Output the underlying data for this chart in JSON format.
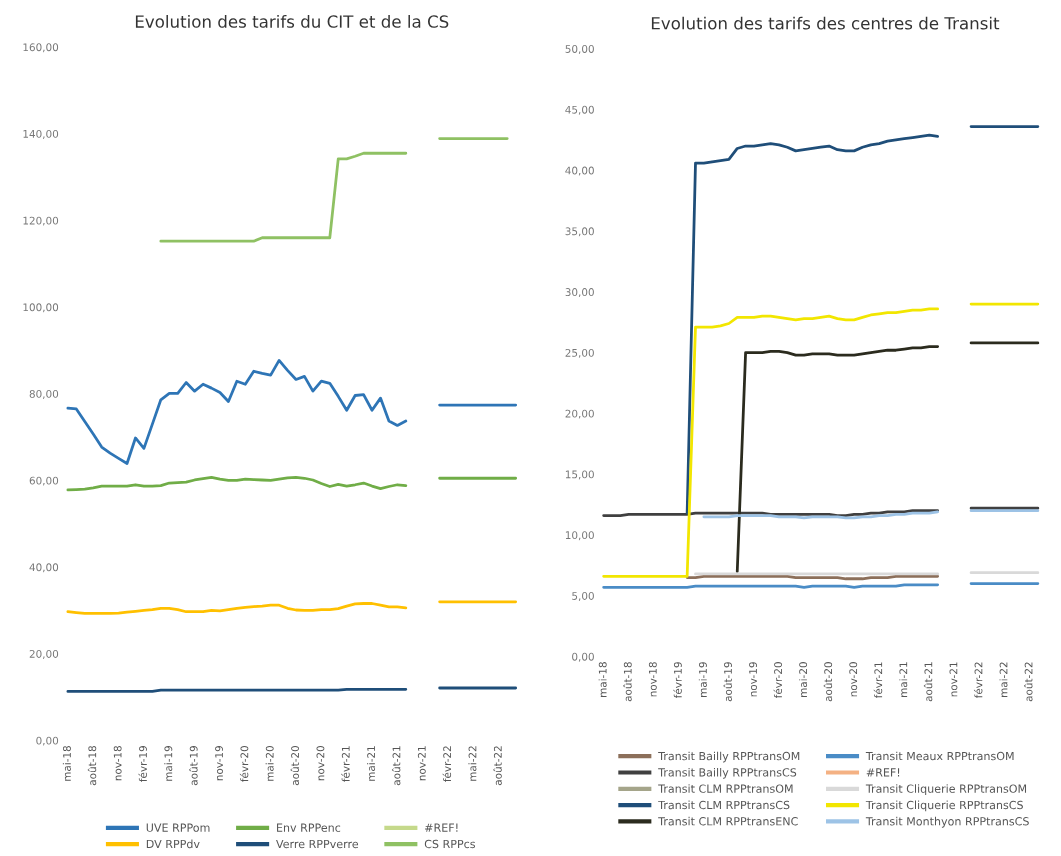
{
  "chart_data": [
    {
      "type": "line",
      "title": "Evolution des tarifs du CIT et de la CS",
      "legend": "bottom",
      "grid": false,
      "categories": [
        "mai-18",
        null,
        null,
        "août-18",
        null,
        null,
        "nov-18",
        null,
        null,
        "févr-19",
        null,
        null,
        "mai-19",
        null,
        null,
        "août-19",
        null,
        null,
        "nov-19",
        null,
        null,
        "févr-20",
        null,
        null,
        "mai-20",
        null,
        null,
        "août-20",
        null,
        null,
        "nov-20",
        null,
        null,
        "févr-21",
        null,
        null,
        "mai-21",
        null,
        null,
        "août-21",
        null,
        null,
        "nov-21",
        null,
        null,
        "févr-22",
        null,
        null,
        "mai-22",
        null,
        null,
        "août-22",
        null,
        null
      ],
      "ylim": [
        0,
        160
      ],
      "yticks": [
        {
          "value": 0,
          "label": "0,00"
        },
        {
          "value": 20,
          "label": "20,00"
        },
        {
          "value": 40,
          "label": "40,00"
        },
        {
          "value": 60,
          "label": "60,00"
        },
        {
          "value": 80,
          "label": "80,00"
        },
        {
          "value": 100,
          "label": "100,00"
        },
        {
          "value": 120,
          "label": "120,00"
        },
        {
          "value": 140,
          "label": "140,00"
        },
        {
          "value": 160,
          "label": "160,00"
        }
      ],
      "series": [
        {
          "name": "UVE RPPom",
          "color": "#2e75b6",
          "values": [
            76.7,
            76.5,
            73.6,
            70.7,
            67.7,
            66.3,
            65.1,
            63.9,
            69.8,
            67.4,
            73.0,
            78.6,
            80.1,
            80.1,
            82.6,
            80.6,
            82.2,
            81.3,
            80.3,
            78.2,
            82.9,
            82.2,
            85.2,
            84.7,
            84.3,
            87.7,
            85.4,
            83.3,
            84.0,
            80.6,
            82.9,
            82.4,
            79.4,
            76.2,
            79.6,
            79.8,
            76.2,
            79.0,
            73.7,
            72.7,
            73.7,
            null,
            null,
            null,
            77.4,
            77.4,
            77.4,
            77.4,
            77.4,
            77.4,
            77.4,
            77.4,
            77.4,
            77.4
          ]
        },
        {
          "name": "DV RPPdv",
          "color": "#ffc000",
          "values": [
            29.7,
            29.5,
            29.3,
            29.3,
            29.3,
            29.3,
            29.4,
            29.6,
            29.8,
            30.0,
            30.2,
            30.5,
            30.5,
            30.2,
            29.7,
            29.7,
            29.7,
            30.0,
            29.9,
            30.2,
            30.5,
            30.7,
            30.9,
            31.0,
            31.2,
            31.2,
            30.5,
            30.1,
            30.0,
            30.0,
            30.2,
            30.2,
            30.4,
            31.0,
            31.5,
            31.6,
            31.6,
            31.2,
            30.8,
            30.8,
            30.6,
            null,
            null,
            null,
            32.0,
            32.0,
            32.0,
            32.0,
            32.0,
            32.0,
            32.0,
            32.0,
            32.0,
            32.0
          ]
        },
        {
          "name": "Env RPPenc",
          "color": "#70ad47",
          "values": [
            57.8,
            57.9,
            58.0,
            58.3,
            58.7,
            58.7,
            58.7,
            58.7,
            59.0,
            58.7,
            58.7,
            58.8,
            59.4,
            59.5,
            59.6,
            60.1,
            60.4,
            60.7,
            60.3,
            60.0,
            60.0,
            60.3,
            60.2,
            60.1,
            60.0,
            60.3,
            60.6,
            60.7,
            60.5,
            60.1,
            59.3,
            58.6,
            59.1,
            58.7,
            59.0,
            59.4,
            58.7,
            58.1,
            58.6,
            59.0,
            58.8,
            null,
            null,
            null,
            60.5,
            60.5,
            60.5,
            60.5,
            60.5,
            60.5,
            60.5,
            60.5,
            60.5,
            60.5
          ]
        },
        {
          "name": "Verre RPPverre",
          "color": "#1f4e79",
          "values": [
            11.3,
            11.3,
            11.3,
            11.3,
            11.3,
            11.3,
            11.3,
            11.3,
            11.3,
            11.3,
            11.3,
            11.6,
            11.6,
            11.6,
            11.6,
            11.6,
            11.6,
            11.6,
            11.6,
            11.6,
            11.6,
            11.6,
            11.6,
            11.6,
            11.6,
            11.6,
            11.6,
            11.6,
            11.6,
            11.6,
            11.6,
            11.6,
            11.6,
            11.8,
            11.8,
            11.8,
            11.8,
            11.8,
            11.8,
            11.8,
            11.8,
            null,
            null,
            null,
            12.1,
            12.1,
            12.1,
            12.1,
            12.1,
            12.1,
            12.1,
            12.1,
            12.1,
            12.1
          ]
        },
        {
          "name": "#REF!",
          "color": "#c5d98b",
          "values": [
            null,
            null,
            null,
            null,
            null,
            null,
            null,
            null,
            null,
            null,
            null,
            null,
            null,
            null,
            null,
            null,
            null,
            null,
            null,
            null,
            null,
            null,
            null,
            null,
            null,
            null,
            null,
            null,
            null,
            null,
            null,
            null,
            null,
            null,
            null,
            null,
            null,
            null,
            null,
            null,
            null,
            null,
            null,
            null,
            null,
            null,
            null,
            null,
            null,
            null,
            null,
            null,
            null,
            null
          ]
        },
        {
          "name": "CS RPPcs",
          "color": "#8fc163",
          "values": [
            null,
            null,
            null,
            null,
            null,
            null,
            null,
            null,
            null,
            null,
            null,
            115.2,
            115.2,
            115.2,
            115.2,
            115.2,
            115.2,
            115.2,
            115.2,
            115.2,
            115.2,
            115.2,
            115.2,
            116.0,
            116.0,
            116.0,
            116.0,
            116.0,
            116.0,
            116.0,
            116.0,
            116.0,
            134.2,
            134.2,
            134.8,
            135.5,
            135.5,
            135.5,
            135.5,
            135.5,
            135.5,
            null,
            null,
            null,
            138.9,
            138.9,
            138.9,
            138.9,
            138.9,
            138.9,
            138.9,
            138.9,
            138.9,
            null
          ]
        }
      ]
    },
    {
      "type": "line",
      "title": "Evolution des tarifs des centres de Transit",
      "legend": "bottom",
      "grid": false,
      "categories": [
        "mai-18",
        null,
        null,
        "août-18",
        null,
        null,
        "nov-18",
        null,
        null,
        "févr-19",
        null,
        null,
        "mai-19",
        null,
        null,
        "août-19",
        null,
        null,
        "nov-19",
        null,
        null,
        "févr-20",
        null,
        null,
        "mai-20",
        null,
        null,
        "août-20",
        null,
        null,
        "nov-20",
        null,
        null,
        "févr-21",
        null,
        null,
        "mai-21",
        null,
        null,
        "août-21",
        null,
        null,
        "nov-21",
        null,
        null,
        "févr-22",
        null,
        null,
        "mai-22",
        null,
        null,
        "août-22",
        null,
        null
      ],
      "ylim": [
        0,
        50
      ],
      "yticks": [
        {
          "value": 0,
          "label": "0,00"
        },
        {
          "value": 5,
          "label": "5,00"
        },
        {
          "value": 10,
          "label": "10,00"
        },
        {
          "value": 15,
          "label": "15,00"
        },
        {
          "value": 20,
          "label": "20,00"
        },
        {
          "value": 25,
          "label": "25,00"
        },
        {
          "value": 30,
          "label": "30,00"
        },
        {
          "value": 35,
          "label": "35,00"
        },
        {
          "value": 40,
          "label": "40,00"
        },
        {
          "value": 45,
          "label": "45,00"
        },
        {
          "value": 50,
          "label": "50,00"
        }
      ],
      "series": [
        {
          "name": "Transit Bailly RPPtransOM",
          "color": "#8c6f5a",
          "values": [
            null,
            null,
            null,
            null,
            null,
            null,
            null,
            null,
            null,
            null,
            6.5,
            6.5,
            6.6,
            6.6,
            6.6,
            6.6,
            6.6,
            6.6,
            6.6,
            6.6,
            6.6,
            6.6,
            6.6,
            6.5,
            6.5,
            6.5,
            6.5,
            6.5,
            6.5,
            6.4,
            6.4,
            6.4,
            6.5,
            6.5,
            6.5,
            6.6,
            6.6,
            6.6,
            6.6,
            6.6,
            6.6,
            null,
            null,
            null,
            null,
            null,
            null,
            null,
            null,
            null,
            null,
            null,
            null,
            null
          ]
        },
        {
          "name": "Transit Bailly RPPtransCS",
          "color": "#404040",
          "values": [
            11.6,
            11.6,
            11.6,
            11.7,
            11.7,
            11.7,
            11.7,
            11.7,
            11.7,
            11.7,
            11.7,
            11.8,
            11.8,
            11.8,
            11.8,
            11.8,
            11.8,
            11.8,
            11.8,
            11.8,
            11.7,
            11.7,
            11.7,
            11.7,
            11.7,
            11.7,
            11.7,
            11.7,
            11.6,
            11.6,
            11.7,
            11.7,
            11.8,
            11.8,
            11.9,
            11.9,
            11.9,
            12.0,
            12.0,
            12.0,
            12.0,
            null,
            null,
            null,
            12.2,
            12.2,
            12.2,
            12.2,
            12.2,
            12.2,
            12.2,
            12.2,
            12.2,
            null
          ]
        },
        {
          "name": "Transit CLM RPPtransOM",
          "color": "#a5a58a",
          "values": [
            null,
            null,
            null,
            null,
            null,
            null,
            null,
            null,
            null,
            null,
            null,
            null,
            null,
            null,
            null,
            null,
            null,
            null,
            null,
            null,
            null,
            null,
            null,
            null,
            null,
            null,
            null,
            null,
            null,
            null,
            null,
            null,
            null,
            null,
            null,
            null,
            null,
            null,
            null,
            null,
            null,
            null,
            null,
            null,
            null,
            null,
            null,
            null,
            null,
            null,
            null,
            null,
            null,
            null
          ]
        },
        {
          "name": "Transit CLM RPPtransCS",
          "color": "#1f4e79",
          "values": [
            null,
            null,
            null,
            null,
            null,
            null,
            null,
            null,
            null,
            null,
            11.8,
            40.6,
            40.6,
            40.7,
            40.8,
            40.9,
            41.8,
            42.0,
            42.0,
            42.1,
            42.2,
            42.1,
            41.9,
            41.6,
            41.7,
            41.8,
            41.9,
            42.0,
            41.7,
            41.6,
            41.6,
            41.9,
            42.1,
            42.2,
            42.4,
            42.5,
            42.6,
            42.7,
            42.8,
            42.9,
            42.8,
            null,
            null,
            null,
            43.6,
            43.6,
            43.6,
            43.6,
            43.6,
            43.6,
            43.6,
            43.6,
            43.6,
            null
          ]
        },
        {
          "name": "Transit CLM RPPtransENC",
          "color": "#2b2b1e",
          "values": [
            null,
            null,
            null,
            null,
            null,
            null,
            null,
            null,
            null,
            null,
            null,
            null,
            null,
            null,
            null,
            null,
            7.0,
            25.0,
            25.0,
            25.0,
            25.1,
            25.1,
            25.0,
            24.8,
            24.8,
            24.9,
            24.9,
            24.9,
            24.8,
            24.8,
            24.8,
            24.9,
            25.0,
            25.1,
            25.2,
            25.2,
            25.3,
            25.4,
            25.4,
            25.5,
            25.5,
            null,
            null,
            null,
            25.8,
            25.8,
            25.8,
            25.8,
            25.8,
            25.8,
            25.8,
            25.8,
            25.8,
            null
          ]
        },
        {
          "name": "Transit Meaux RPPtransOM",
          "color": "#4a8cc6",
          "values": [
            5.7,
            5.7,
            5.7,
            5.7,
            5.7,
            5.7,
            5.7,
            5.7,
            5.7,
            5.7,
            5.7,
            5.8,
            5.8,
            5.8,
            5.8,
            5.8,
            5.8,
            5.8,
            5.8,
            5.8,
            5.8,
            5.8,
            5.8,
            5.8,
            5.7,
            5.8,
            5.8,
            5.8,
            5.8,
            5.8,
            5.7,
            5.8,
            5.8,
            5.8,
            5.8,
            5.8,
            5.9,
            5.9,
            5.9,
            5.9,
            5.9,
            null,
            null,
            null,
            6.0,
            6.0,
            6.0,
            6.0,
            6.0,
            6.0,
            6.0,
            6.0,
            6.0,
            null
          ]
        },
        {
          "name": "#REF!",
          "color": "#f4b183",
          "values": [
            null,
            null,
            null,
            null,
            null,
            null,
            null,
            null,
            null,
            null,
            null,
            null,
            null,
            null,
            null,
            null,
            null,
            null,
            null,
            null,
            null,
            null,
            null,
            null,
            null,
            null,
            null,
            null,
            null,
            null,
            null,
            null,
            null,
            null,
            null,
            null,
            null,
            null,
            null,
            null,
            null,
            null,
            null,
            null,
            null,
            null,
            null,
            null,
            null,
            null,
            null,
            null,
            null,
            null
          ]
        },
        {
          "name": "Transit Cliquerie RPPtransOM",
          "color": "#d9d9d9",
          "values": [
            null,
            null,
            null,
            null,
            null,
            null,
            null,
            null,
            null,
            null,
            null,
            6.8,
            6.8,
            6.8,
            6.8,
            6.8,
            6.8,
            6.8,
            6.8,
            6.8,
            6.8,
            6.8,
            6.8,
            6.8,
            6.8,
            6.8,
            6.8,
            6.8,
            6.8,
            6.8,
            6.8,
            6.8,
            6.8,
            6.8,
            6.8,
            6.8,
            6.8,
            6.8,
            6.8,
            6.8,
            6.8,
            null,
            null,
            null,
            6.9,
            6.9,
            6.9,
            6.9,
            6.9,
            6.9,
            6.9,
            6.9,
            6.9,
            null
          ]
        },
        {
          "name": "Transit Cliquerie RPPtransCS",
          "color": "#f2e600",
          "values": [
            6.6,
            6.6,
            6.6,
            6.6,
            6.6,
            6.6,
            6.6,
            6.6,
            6.6,
            6.6,
            6.6,
            27.1,
            27.1,
            27.1,
            27.2,
            27.4,
            27.9,
            27.9,
            27.9,
            28.0,
            28.0,
            27.9,
            27.8,
            27.7,
            27.8,
            27.8,
            27.9,
            28.0,
            27.8,
            27.7,
            27.7,
            27.9,
            28.1,
            28.2,
            28.3,
            28.3,
            28.4,
            28.5,
            28.5,
            28.6,
            28.6,
            null,
            null,
            null,
            29.0,
            29.0,
            29.0,
            29.0,
            29.0,
            29.0,
            29.0,
            29.0,
            29.0,
            null
          ]
        },
        {
          "name": "Transit Monthyon RPPtransCS",
          "color": "#9dc3e6",
          "values": [
            null,
            null,
            null,
            null,
            null,
            null,
            null,
            null,
            null,
            null,
            null,
            null,
            11.5,
            11.5,
            11.5,
            11.5,
            11.6,
            11.6,
            11.6,
            11.6,
            11.6,
            11.5,
            11.5,
            11.5,
            11.4,
            11.5,
            11.5,
            11.5,
            11.5,
            11.4,
            11.4,
            11.5,
            11.5,
            11.6,
            11.6,
            11.7,
            11.7,
            11.8,
            11.8,
            11.8,
            11.9,
            null,
            null,
            null,
            12.0,
            12.0,
            12.0,
            12.0,
            12.0,
            12.0,
            12.0,
            12.0,
            12.0,
            null
          ]
        }
      ]
    }
  ]
}
